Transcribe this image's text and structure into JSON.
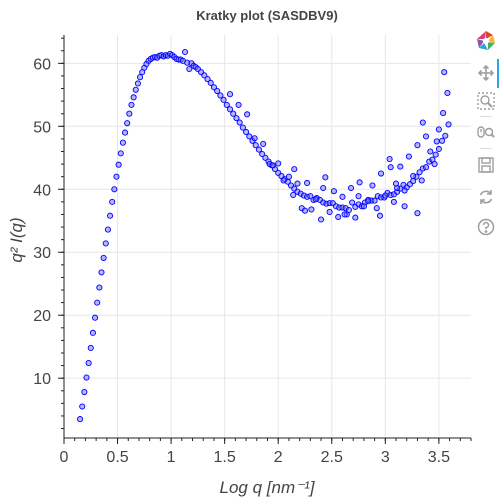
{
  "chart_data": {
    "type": "scatter",
    "title": "Kratky plot (SASDBV9)",
    "xlabel": "Log q [nm⁻¹]",
    "ylabel": "q² I(q)",
    "xlim": [
      0,
      3.8
    ],
    "ylim": [
      0.5,
      64.5
    ],
    "xticks": [
      "0",
      "0.5",
      "1",
      "1.5",
      "2",
      "2.5",
      "3",
      "3.5"
    ],
    "yticks": [
      "10",
      "20",
      "30",
      "40",
      "50",
      "60"
    ],
    "grid": true,
    "marker": "circle",
    "series": [
      {
        "point_color": "#0000ff",
        "fill_color": "#6e6eff",
        "x": [
          0.15,
          0.17,
          0.19,
          0.21,
          0.23,
          0.25,
          0.27,
          0.29,
          0.31,
          0.33,
          0.35,
          0.37,
          0.39,
          0.41,
          0.43,
          0.45,
          0.47,
          0.49,
          0.51,
          0.53,
          0.55,
          0.57,
          0.59,
          0.61,
          0.63,
          0.65,
          0.67,
          0.69,
          0.71,
          0.73,
          0.75,
          0.77,
          0.79,
          0.81,
          0.83,
          0.85,
          0.87,
          0.89,
          0.91,
          0.93,
          0.95,
          0.97,
          0.99,
          1.01,
          1.03,
          1.05,
          1.07,
          1.09,
          1.11,
          1.13,
          1.15,
          1.17,
          1.19,
          1.21,
          1.23,
          1.25,
          1.28,
          1.31,
          1.34,
          1.37,
          1.4,
          1.43,
          1.46,
          1.49,
          1.52,
          1.55,
          1.58,
          1.61,
          1.64,
          1.67,
          1.7,
          1.73,
          1.76,
          1.79,
          1.82,
          1.85,
          1.88,
          1.91,
          1.94,
          1.97,
          2.0,
          2.03,
          2.06,
          2.09,
          2.12,
          2.15,
          2.18,
          2.21,
          2.24,
          2.27,
          2.3,
          2.33,
          2.36,
          2.39,
          2.42,
          2.45,
          2.48,
          2.51,
          2.54,
          2.57,
          2.6,
          2.63,
          2.66,
          2.69,
          2.72,
          2.75,
          2.78,
          2.81,
          2.84,
          2.87,
          2.9,
          2.93,
          2.96,
          2.99,
          3.02,
          3.05,
          3.08,
          3.11,
          3.14,
          3.17,
          3.2,
          3.23,
          3.26,
          3.29,
          3.32,
          3.35,
          3.38,
          3.41,
          3.44,
          3.47,
          3.5,
          3.53,
          3.56,
          3.59
        ],
        "y": [
          3.5,
          5.5,
          7.8,
          10.1,
          12.4,
          14.8,
          17.2,
          19.6,
          22.0,
          24.4,
          26.8,
          29.1,
          31.4,
          33.6,
          35.8,
          38.0,
          40.0,
          42.0,
          43.9,
          45.7,
          47.4,
          49.0,
          50.5,
          52.0,
          53.4,
          54.6,
          55.8,
          56.8,
          57.8,
          58.6,
          59.3,
          59.9,
          60.4,
          60.7,
          60.9,
          61.0,
          60.9,
          61.2,
          61.3,
          61.1,
          61.3,
          61.2,
          61.5,
          61.3,
          61.0,
          60.7,
          60.6,
          60.6,
          60.4,
          61.8,
          60.1,
          59.1,
          60.0,
          59.6,
          59.4,
          59.1,
          58.6,
          58.1,
          57.5,
          56.9,
          56.2,
          55.6,
          54.9,
          54.2,
          53.4,
          52.7,
          52.0,
          51.3,
          50.6,
          49.8,
          49.1,
          48.4,
          47.7,
          47.0,
          46.3,
          45.6,
          45.0,
          44.4,
          43.8,
          43.2,
          42.6,
          42.1,
          41.6,
          41.2,
          40.6,
          40.1,
          39.6,
          39.3,
          39.0,
          38.8,
          38.9,
          38.3,
          38.6,
          38.3,
          37.9,
          37.7,
          37.8,
          37.8,
          37.3,
          37.1,
          37.1,
          37.0,
          36.7,
          37.9,
          37.2,
          37.6,
          37.3,
          37.9,
          38.3,
          38.2,
          38.2,
          38.9,
          38.7,
          38.7,
          39.4,
          39.1,
          39.2,
          39.6,
          40.1,
          40.7,
          40.3,
          40.8,
          41.3,
          42.0,
          42.7,
          43.3,
          43.5,
          44.4,
          44.7,
          45.5,
          46.4,
          47.7,
          48.5,
          50.3
        ]
      },
      {
        "point_color": "#0000ff",
        "fill_color": "#6e6eff",
        "x": [
          1.55,
          1.63,
          1.71,
          1.78,
          1.86,
          1.92,
          2.0,
          2.05,
          2.1,
          2.14,
          2.18,
          2.22,
          2.27,
          2.31,
          2.35,
          2.4,
          2.44,
          2.48,
          2.52,
          2.56,
          2.6,
          2.64,
          2.68,
          2.72,
          2.76,
          2.8,
          2.84,
          2.88,
          2.92,
          2.96,
          3.0,
          3.04,
          3.08,
          3.11,
          3.14,
          3.18,
          3.22,
          3.26,
          3.3,
          3.34,
          3.38,
          3.42,
          3.46,
          3.5,
          3.54,
          3.58,
          3.3,
          3.18,
          2.95,
          2.62,
          2.42,
          3.48,
          3.55,
          3.1,
          2.25,
          2.75,
          3.35,
          3.05,
          2.15,
          1.95
        ],
        "y": [
          55.1,
          53.4,
          51.9,
          48.1,
          47.2,
          44.0,
          44.1,
          41.4,
          42.0,
          39.1,
          40.9,
          37.0,
          41.0,
          36.8,
          38.4,
          35.2,
          41.9,
          36.4,
          39.7,
          35.6,
          38.8,
          36.0,
          40.2,
          35.5,
          41.1,
          37.3,
          38.1,
          40.6,
          37.0,
          42.5,
          39.0,
          44.8,
          38.0,
          40.2,
          43.6,
          39.8,
          45.2,
          42.1,
          47.0,
          41.4,
          48.4,
          46.0,
          44.0,
          49.5,
          52.1,
          55.3,
          36.2,
          37.3,
          35.8,
          36.0,
          40.2,
          47.6,
          58.6,
          40.9,
          36.6,
          38.9,
          50.6,
          43.5,
          43.2,
          43.8
        ]
      }
    ]
  },
  "toolbar": {
    "tools": [
      {
        "name": "bokeh-logo-icon"
      },
      {
        "name": "pan-icon"
      },
      {
        "name": "box-zoom-icon"
      },
      {
        "name": "wheel-zoom-icon"
      },
      {
        "name": "save-icon"
      },
      {
        "name": "reset-icon"
      },
      {
        "name": "help-icon"
      }
    ],
    "active_color": "#26aae1"
  }
}
